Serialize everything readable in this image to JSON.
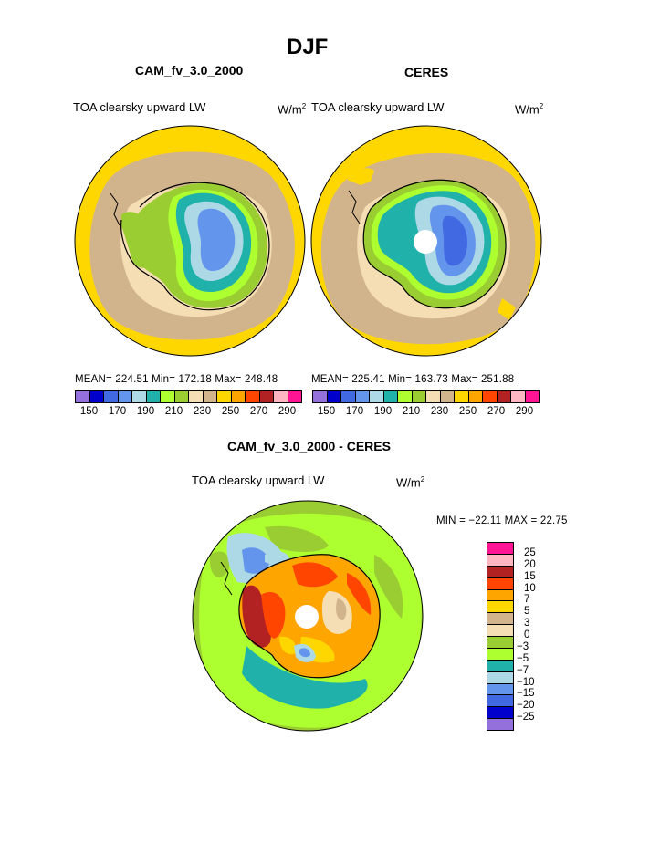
{
  "figure": {
    "title": "DJF"
  },
  "panels": [
    {
      "title": "CAM_fv_3.0_2000",
      "variable": "TOA clearsky upward LW",
      "units_base": "W/m",
      "units_exp": "2",
      "stats": "MEAN= 224.51   Min= 172.18   Max= 248.48"
    },
    {
      "title": "CERES",
      "variable": "TOA clearsky upward LW",
      "units_base": "W/m",
      "units_exp": "2",
      "stats": "MEAN= 225.41   Min= 163.73   Max= 251.88"
    }
  ],
  "colorbar_levels": {
    "tick_labels": [
      "150",
      "170",
      "190",
      "210",
      "230",
      "250",
      "270",
      "290"
    ],
    "colors": [
      "#9370DB",
      "#0000CD",
      "#4169E1",
      "#6495ED",
      "#ADD8E6",
      "#20B2AA",
      "#ADFF2F",
      "#9ACD32",
      "#F5DEB3",
      "#D2B48C",
      "#FFD700",
      "#FFA500",
      "#FF4500",
      "#B22222",
      "#FFB6C1",
      "#FF1493"
    ]
  },
  "difference_panel": {
    "title": "CAM_fv_3.0_2000 - CERES",
    "variable": "TOA clearsky upward LW",
    "units_base": "W/m",
    "units_exp": "2",
    "stats": "MIN = −22.11  MAX =   22.75",
    "legend_labels": [
      "25",
      "20",
      "15",
      "10",
      "7",
      "5",
      "3",
      "0",
      "−3",
      "−5",
      "−7",
      "−10",
      "−15",
      "−20",
      "−25"
    ],
    "legend_colors": [
      "#FF1493",
      "#FFB6C1",
      "#B22222",
      "#FF4500",
      "#FFA500",
      "#FFD700",
      "#D2B48C",
      "#F5DEB3",
      "#9ACD32",
      "#ADFF2F",
      "#20B2AA",
      "#ADD8E6",
      "#6495ED",
      "#4169E1",
      "#0000CD",
      "#9370DB"
    ]
  }
}
